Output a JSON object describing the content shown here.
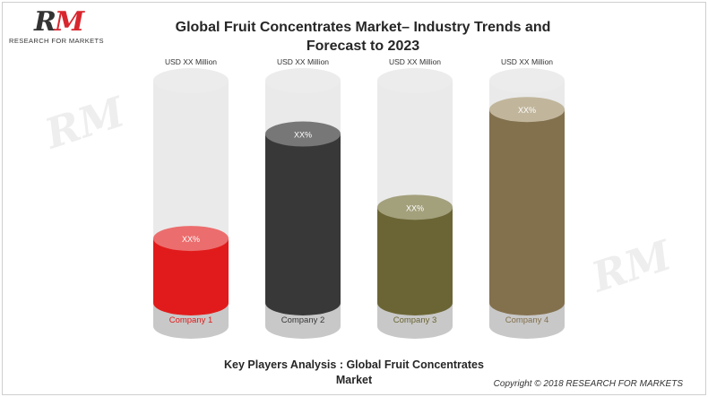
{
  "logo": {
    "mark_r": "R",
    "mark_m": "M",
    "subtitle": "RESEARCH FOR MARKETS"
  },
  "title": "Global Fruit Concentrates Market– Industry Trends and Forecast to 2023",
  "caption": "Key Players Analysis : Global Fruit Concentrates Market",
  "copyright": "Copyright © 2018 RESEARCH FOR MARKETS",
  "watermark": "RM",
  "chart_data": {
    "type": "bar",
    "categories": [
      "Company  1",
      "Company  2",
      "Company  3",
      "Company  4"
    ],
    "values": [
      0.29,
      0.76,
      0.43,
      0.87
    ],
    "value_labels": [
      "XX%",
      "XX%",
      "XX%",
      "XX%"
    ],
    "top_labels": [
      "USD XX Million",
      "USD XX Million",
      "USD XX Million",
      "USD XX Million"
    ],
    "ylim": [
      0,
      1
    ],
    "colors": [
      "#e11b1b",
      "#383838",
      "#6b6535",
      "#83704d"
    ],
    "top_colors": [
      "#ec6d6d",
      "#777777",
      "#a3a07c",
      "#c1b69c"
    ]
  }
}
